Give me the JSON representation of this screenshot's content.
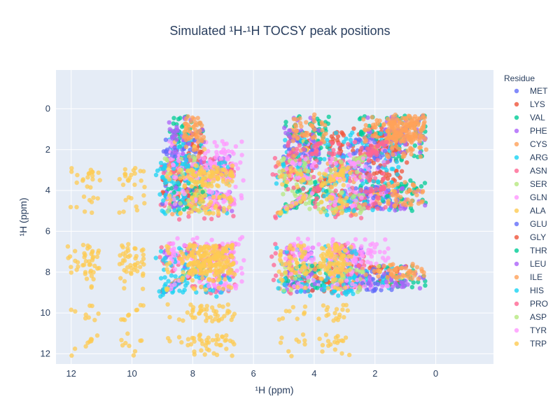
{
  "chart_data": {
    "type": "scatter",
    "title": "Simulated ¹H-¹H TOCSY peak positions",
    "xlabel": "¹H (ppm)",
    "ylabel": "¹H (ppm)",
    "xlim": [
      12.5,
      -1.9
    ],
    "ylim": [
      12.5,
      -1.9
    ],
    "x_reversed": true,
    "y_reversed": true,
    "xticks": [
      12,
      10,
      8,
      6,
      4,
      2,
      0
    ],
    "yticks": [
      0,
      2,
      4,
      6,
      8,
      10,
      12
    ],
    "grid": true,
    "legend_title": "Residue",
    "legend_position": "right",
    "series": [
      {
        "name": "MET",
        "color": "#636efa",
        "shifts": [
          8.3,
          4.5,
          2.1,
          2.6,
          2.1
        ]
      },
      {
        "name": "LYS",
        "color": "#ef553b",
        "shifts": [
          8.2,
          4.3,
          1.8,
          1.4,
          1.7,
          3.0
        ]
      },
      {
        "name": "VAL",
        "color": "#00cc96",
        "shifts": [
          8.1,
          4.1,
          2.1,
          0.95,
          0.9
        ]
      },
      {
        "name": "PHE",
        "color": "#ab63fa",
        "shifts": [
          8.4,
          4.6,
          3.1,
          2.9,
          7.3,
          7.2
        ]
      },
      {
        "name": "CYS",
        "color": "#ffa15a",
        "shifts": [
          8.3,
          4.7,
          3.2,
          2.9
        ]
      },
      {
        "name": "ARG",
        "color": "#19d3f3",
        "shifts": [
          8.3,
          4.4,
          1.9,
          1.7,
          3.2
        ]
      },
      {
        "name": "ASN",
        "color": "#ff6692",
        "shifts": [
          8.5,
          4.8,
          2.9,
          2.7,
          7.6,
          6.9
        ]
      },
      {
        "name": "SER",
        "color": "#b6e880",
        "shifts": [
          8.2,
          4.5,
          3.9,
          3.8
        ]
      },
      {
        "name": "GLN",
        "color": "#ff97ff",
        "shifts": [
          8.3,
          4.3,
          2.1,
          2.4,
          7.5,
          6.8
        ]
      },
      {
        "name": "ALA",
        "color": "#fecb52",
        "shifts": [
          8.2,
          4.3,
          1.4
        ]
      },
      {
        "name": "GLU",
        "color": "#636efa",
        "shifts": [
          8.4,
          4.3,
          2.0,
          2.3
        ]
      },
      {
        "name": "GLY",
        "color": "#ef553b",
        "shifts": [
          8.4,
          3.97,
          3.9
        ]
      },
      {
        "name": "THR",
        "color": "#00cc96",
        "shifts": [
          8.2,
          4.4,
          4.2,
          1.2
        ]
      },
      {
        "name": "LEU",
        "color": "#ab63fa",
        "shifts": [
          8.2,
          4.4,
          1.7,
          1.6,
          0.9
        ]
      },
      {
        "name": "ILE",
        "color": "#ffa15a",
        "shifts": [
          8.2,
          4.2,
          1.9,
          1.4,
          1.2,
          0.9,
          0.85
        ]
      },
      {
        "name": "HIS",
        "color": "#19d3f3",
        "shifts": [
          8.4,
          4.7,
          3.2,
          3.1,
          8.6,
          7.3
        ]
      },
      {
        "name": "PRO",
        "color": "#ff6692",
        "shifts": [
          4.4,
          2.3,
          2.0,
          3.6
        ]
      },
      {
        "name": "ASP",
        "color": "#b6e880",
        "shifts": [
          8.4,
          4.7,
          2.8,
          2.7
        ]
      },
      {
        "name": "TYR",
        "color": "#ff97ff",
        "shifts": [
          8.2,
          4.6,
          3.0,
          2.9,
          7.1,
          6.9
        ]
      },
      {
        "name": "TRP",
        "color": "#fecb52",
        "shifts": [
          8.3,
          4.7,
          3.3,
          3.2,
          7.6,
          7.3,
          7.2,
          10.2,
          7.5,
          11.6
        ]
      }
    ]
  }
}
